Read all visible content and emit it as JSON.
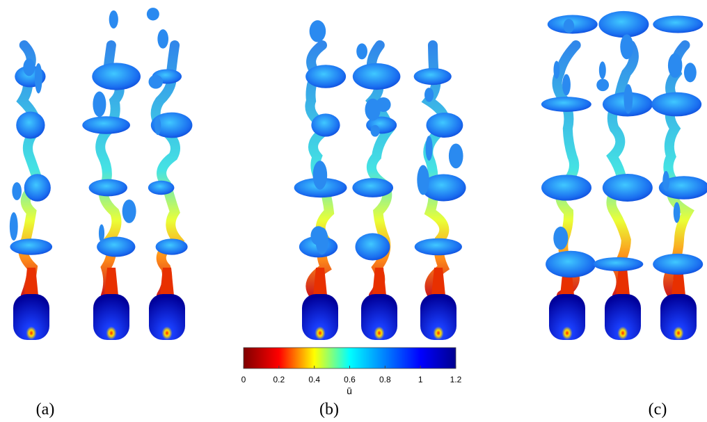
{
  "panels": [
    {
      "label": "(a)"
    },
    {
      "label": "(b)"
    },
    {
      "label": "(c)"
    }
  ],
  "colorbar": {
    "label": "ū",
    "lim": [
      0,
      1.2
    ],
    "ticks": [
      0,
      0.2,
      0.4,
      0.6,
      0.8,
      1,
      1.2
    ],
    "colors": [
      "#7f0000",
      "#ff0000",
      "#ffff00",
      "#00ffff",
      "#0080ff",
      "#0000ff",
      "#00008f"
    ]
  }
}
